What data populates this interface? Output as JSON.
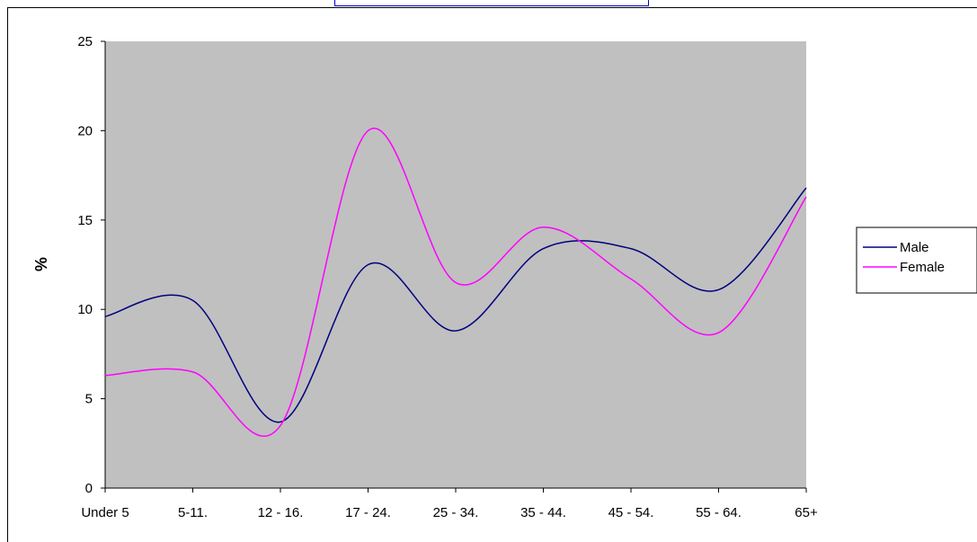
{
  "chart_data": {
    "type": "line",
    "title": "",
    "xlabel": "",
    "ylabel": "%",
    "ylim": [
      0,
      25
    ],
    "yticks": [
      "0",
      "5",
      "10",
      "15",
      "20",
      "25"
    ],
    "categories": [
      "Under 5",
      "5-11.",
      "12 - 16.",
      "17 - 24.",
      "25 - 34.",
      "35 - 44.",
      "45 - 54.",
      "55 - 64.",
      "65+"
    ],
    "smooth": true,
    "plot_background": "#c0c0c0",
    "legend_position": "right",
    "series": [
      {
        "name": "Male",
        "color": "#000080",
        "values": [
          9.6,
          10.5,
          3.7,
          12.5,
          8.8,
          13.4,
          13.4,
          11.1,
          16.8
        ]
      },
      {
        "name": "Female",
        "color": "#ff00ff",
        "values": [
          6.3,
          6.5,
          3.5,
          20.0,
          11.5,
          14.6,
          11.7,
          8.7,
          16.3
        ]
      }
    ]
  }
}
